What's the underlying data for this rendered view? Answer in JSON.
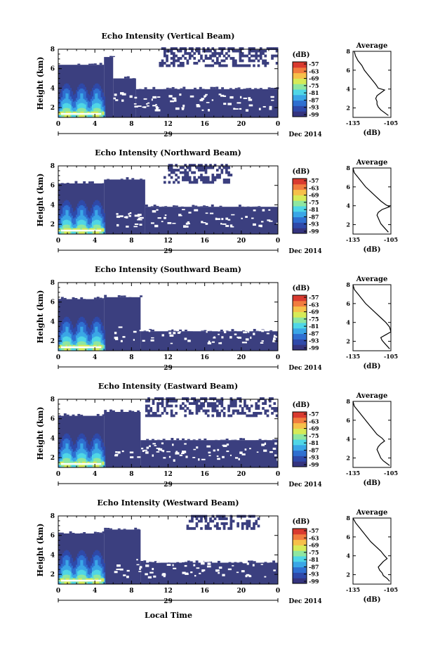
{
  "colors": {
    "background": "#ffffff",
    "echo_base": "#3b3f7f",
    "scale": [
      "#35347e",
      "#2f49a9",
      "#2f6fd0",
      "#3aa6e6",
      "#4fd6e6",
      "#8ee6a0",
      "#d6ea57",
      "#f6c04a",
      "#f17c3f",
      "#d93a2f"
    ]
  },
  "chart_data": [
    {
      "type": "heatmap",
      "title": "Echo Intensity (Vertical Beam)",
      "ylabel": "Height (km)",
      "yticks": [
        "2",
        "4",
        "6",
        "8"
      ],
      "ylim": [
        1.0,
        8.0
      ],
      "xticks": [
        "0",
        "4",
        "8",
        "12",
        "16",
        "20",
        "0"
      ],
      "xlim": [
        0,
        24
      ],
      "date_label": "29",
      "month_label": "Dec 2014",
      "colorbar": {
        "unit": "(dB)",
        "ticks": [
          "-57",
          "-63",
          "-69",
          "-75",
          "-81",
          "-87",
          "-93",
          "-99"
        ]
      },
      "echo_top_km": [
        {
          "from": 0,
          "to": 5,
          "top": 6.4
        },
        {
          "from": 5,
          "to": 6,
          "top": 7.2
        },
        {
          "from": 6,
          "to": 8.5,
          "top": 5.0
        },
        {
          "from": 8.5,
          "to": 24,
          "top": 3.9
        }
      ],
      "upper_layer_km": {
        "from": 11,
        "to": 24,
        "bottom": 6.2,
        "top": 8.0
      },
      "average_profile": {
        "title": "Average",
        "xlabel": "(dB)",
        "xticks": [
          "-135",
          "-105"
        ],
        "xlim": [
          -135,
          -105
        ],
        "yticks": [
          "2",
          "4",
          "6",
          "8"
        ],
        "ylim": [
          1,
          8
        ],
        "height_km": [
          8.0,
          7.5,
          7.0,
          6.5,
          6.0,
          5.5,
          5.0,
          4.5,
          4.1,
          3.9,
          3.6,
          3.3,
          3.0,
          2.7,
          2.4,
          2.1,
          1.8,
          1.5,
          1.2
        ],
        "value_db": [
          -134,
          -133,
          -131,
          -128,
          -126,
          -123,
          -120,
          -117,
          -115,
          -110,
          -113,
          -116,
          -117,
          -116,
          -116,
          -115,
          -113,
          -110,
          -107
        ]
      }
    },
    {
      "type": "heatmap",
      "title": "Echo Intensity (Northward Beam)",
      "ylabel": "Height (km)",
      "yticks": [
        "2",
        "4",
        "6",
        "8"
      ],
      "ylim": [
        1.0,
        8.0
      ],
      "xticks": [
        "0",
        "4",
        "8",
        "12",
        "16",
        "20",
        "0"
      ],
      "xlim": [
        0,
        24
      ],
      "date_label": "29",
      "month_label": "Dec 2014",
      "colorbar": {
        "unit": "(dB)",
        "ticks": [
          "-57",
          "-63",
          "-69",
          "-75",
          "-81",
          "-87",
          "-93",
          "-99"
        ]
      },
      "echo_top_km": [
        {
          "from": 0,
          "to": 5,
          "top": 6.2
        },
        {
          "from": 5,
          "to": 9.5,
          "top": 6.6
        },
        {
          "from": 9.5,
          "to": 24,
          "top": 3.8
        }
      ],
      "upper_layer_km": {
        "from": 11.5,
        "to": 19,
        "bottom": 6.2,
        "top": 8.0
      },
      "average_profile": {
        "title": "Average",
        "xlabel": "(dB)",
        "xticks": [
          "-135",
          "-105"
        ],
        "xlim": [
          -135,
          -105
        ],
        "yticks": [
          "2",
          "4",
          "6",
          "8"
        ],
        "ylim": [
          1,
          8
        ],
        "height_km": [
          8.0,
          7.5,
          7.0,
          6.5,
          6.0,
          5.5,
          5.0,
          4.5,
          4.1,
          3.9,
          3.6,
          3.3,
          3.0,
          2.7,
          2.4,
          2.1,
          1.8,
          1.5,
          1.2
        ],
        "value_db": [
          -135,
          -134,
          -131,
          -128,
          -125,
          -121,
          -117,
          -113,
          -109,
          -106,
          -112,
          -115,
          -116,
          -115,
          -114,
          -113,
          -111,
          -109,
          -107
        ]
      }
    },
    {
      "type": "heatmap",
      "title": "Echo Intensity (Southward Beam)",
      "ylabel": "Height (km)",
      "yticks": [
        "2",
        "4",
        "6",
        "8"
      ],
      "ylim": [
        1.0,
        8.0
      ],
      "xticks": [
        "0",
        "4",
        "8",
        "12",
        "16",
        "20",
        "0"
      ],
      "xlim": [
        0,
        24
      ],
      "date_label": "29",
      "month_label": "Dec 2014",
      "colorbar": {
        "unit": "(dB)",
        "ticks": [
          "-57",
          "-63",
          "-69",
          "-75",
          "-81",
          "-87",
          "-93",
          "-99"
        ]
      },
      "echo_top_km": [
        {
          "from": 0,
          "to": 5,
          "top": 6.3
        },
        {
          "from": 5,
          "to": 9,
          "top": 6.5
        },
        {
          "from": 9,
          "to": 24,
          "top": 3.0
        }
      ],
      "upper_layer_km": null,
      "average_profile": {
        "title": "Average",
        "xlabel": "(dB)",
        "xticks": [
          "-135",
          "-105"
        ],
        "xlim": [
          -135,
          -105
        ],
        "yticks": [
          "2",
          "4",
          "6",
          "8"
        ],
        "ylim": [
          1,
          8
        ],
        "height_km": [
          8.0,
          7.5,
          7.0,
          6.5,
          6.0,
          5.5,
          5.0,
          4.5,
          4.0,
          3.5,
          3.0,
          2.7,
          2.4,
          2.1,
          1.8,
          1.5,
          1.2
        ],
        "value_db": [
          -135,
          -134,
          -131,
          -128,
          -125,
          -121,
          -117,
          -113,
          -109,
          -106,
          -105,
          -109,
          -113,
          -112,
          -110,
          -108,
          -106
        ]
      }
    },
    {
      "type": "heatmap",
      "title": "Echo Intensity (Eastward Beam)",
      "ylabel": "Height (km)",
      "yticks": [
        "2",
        "4",
        "6",
        "8"
      ],
      "ylim": [
        1.0,
        8.0
      ],
      "xticks": [
        "0",
        "4",
        "8",
        "12",
        "16",
        "20",
        "0"
      ],
      "xlim": [
        0,
        24
      ],
      "date_label": "29",
      "month_label": "Dec 2014",
      "colorbar": {
        "unit": "(dB)",
        "ticks": [
          "-57",
          "-63",
          "-69",
          "-75",
          "-81",
          "-87",
          "-93",
          "-99"
        ]
      },
      "echo_top_km": [
        {
          "from": 0,
          "to": 5,
          "top": 6.3
        },
        {
          "from": 5,
          "to": 9,
          "top": 6.7
        },
        {
          "from": 9,
          "to": 24,
          "top": 3.8
        }
      ],
      "upper_layer_km": {
        "from": 9.5,
        "to": 24,
        "bottom": 6.2,
        "top": 8.0
      },
      "average_profile": {
        "title": "Average",
        "xlabel": "(dB)",
        "xticks": [
          "-135",
          "-105"
        ],
        "xlim": [
          -135,
          -105
        ],
        "yticks": [
          "2",
          "4",
          "6",
          "8"
        ],
        "ylim": [
          1,
          8
        ],
        "height_km": [
          8.0,
          7.5,
          7.0,
          6.5,
          6.0,
          5.5,
          5.0,
          4.5,
          4.1,
          3.8,
          3.5,
          3.2,
          2.9,
          2.6,
          2.3,
          2.0,
          1.7,
          1.4,
          1.2
        ],
        "value_db": [
          -135,
          -134,
          -131,
          -128,
          -125,
          -122,
          -119,
          -116,
          -112,
          -110,
          -113,
          -115,
          -116,
          -115,
          -114,
          -113,
          -111,
          -108,
          -106
        ]
      }
    },
    {
      "type": "heatmap",
      "title": "Echo Intensity (Westward Beam)",
      "ylabel": "Height (km)",
      "yticks": [
        "2",
        "4",
        "6",
        "8"
      ],
      "ylim": [
        1.0,
        8.0
      ],
      "xticks": [
        "0",
        "4",
        "8",
        "12",
        "16",
        "20",
        "0"
      ],
      "xlim": [
        0,
        24
      ],
      "date_label": "29",
      "month_label": "Dec 2014",
      "colorbar": {
        "unit": "(dB)",
        "ticks": [
          "-57",
          "-63",
          "-69",
          "-75",
          "-81",
          "-87",
          "-93",
          "-99"
        ]
      },
      "echo_top_km": [
        {
          "from": 0,
          "to": 5,
          "top": 6.2
        },
        {
          "from": 5,
          "to": 9,
          "top": 6.6
        },
        {
          "from": 9,
          "to": 24,
          "top": 3.2
        }
      ],
      "upper_layer_km": {
        "from": 14,
        "to": 22,
        "bottom": 6.6,
        "top": 8.0
      },
      "average_profile": {
        "title": "Average",
        "xlabel": "(dB)",
        "xticks": [
          "-135",
          "-105"
        ],
        "xlim": [
          -135,
          -105
        ],
        "yticks": [
          "2",
          "4",
          "6",
          "8"
        ],
        "ylim": [
          1,
          8
        ],
        "height_km": [
          8.0,
          7.5,
          7.0,
          6.5,
          6.0,
          5.5,
          5.0,
          4.5,
          4.0,
          3.7,
          3.4,
          3.1,
          2.8,
          2.5,
          2.2,
          1.9,
          1.6,
          1.3
        ],
        "value_db": [
          -135,
          -133,
          -130,
          -127,
          -124,
          -121,
          -117,
          -113,
          -110,
          -108,
          -111,
          -113,
          -115,
          -114,
          -112,
          -111,
          -108,
          -106
        ]
      }
    }
  ],
  "footer": {
    "xlabel": "Local Time"
  }
}
